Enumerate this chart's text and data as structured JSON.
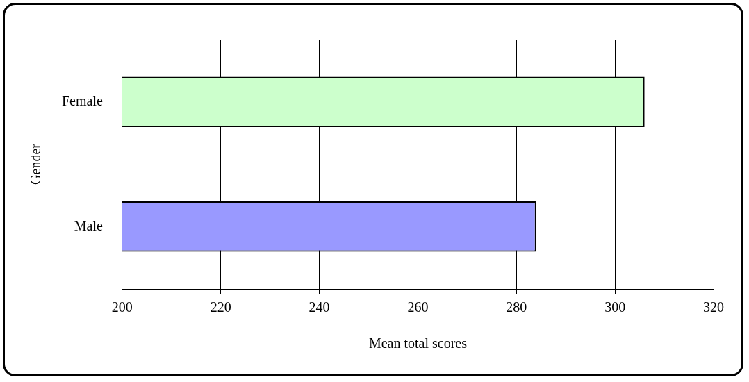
{
  "chart_data": {
    "type": "bar",
    "orientation": "horizontal",
    "categories": [
      "Female",
      "Male"
    ],
    "values": [
      306,
      284
    ],
    "colors": [
      "#ccffcc",
      "#9999ff"
    ],
    "xlim": [
      200,
      320
    ],
    "xticks": [
      200,
      220,
      240,
      260,
      280,
      300,
      320
    ],
    "grid": "x",
    "legend": false,
    "xlabel": "Mean total scores",
    "ylabel": "Gender"
  }
}
